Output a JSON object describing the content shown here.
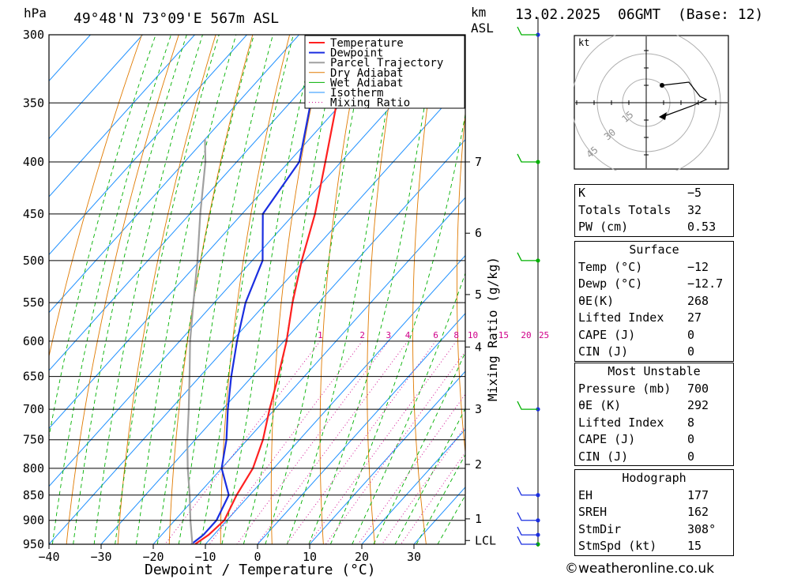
{
  "header": {
    "hpa": "hPa",
    "location": "49°48'N  73°09'E  567m  ASL",
    "km": "km",
    "asl": "ASL",
    "datetime": "13.02.2025  06GMT  (Base: 12)"
  },
  "legend": [
    "Temperature",
    "Dewpoint",
    "Parcel Trajectory",
    "Dry Adiabat",
    "Wet Adiabat",
    "Isotherm",
    "Mixing Ratio"
  ],
  "colors": {
    "temperature": "#ff2020",
    "dewpoint": "#1a2ee0",
    "parcel": "#a0a0a0",
    "dry_adiabat": "#e07a00",
    "wet_adiabat": "#00b000",
    "isotherm": "#1e90ff",
    "mixing_ratio": "#d0008a"
  },
  "chart_data": {
    "type": "line",
    "xlabel": "Dewpoint / Temperature (°C)",
    "ylabel": "hPa",
    "xlim": [
      -40,
      38
    ],
    "pressure_levels": [
      300,
      350,
      400,
      450,
      500,
      550,
      600,
      650,
      700,
      750,
      800,
      850,
      900,
      950
    ],
    "x_ticks": [
      -40,
      -30,
      -20,
      -10,
      0,
      10,
      20,
      30
    ],
    "series": [
      {
        "name": "Temperature",
        "pressure": [
          950,
          930,
          900,
          850,
          800,
          750,
          700,
          650,
          600,
          550,
          500,
          450,
          400,
          350,
          300
        ],
        "values": [
          -12,
          -11,
          -10.5,
          -12.5,
          -14,
          -17,
          -21,
          -25,
          -29.5,
          -35,
          -40.5,
          -46,
          -53,
          -61,
          -70
        ]
      },
      {
        "name": "Dewpoint",
        "pressure": [
          950,
          930,
          900,
          850,
          800,
          750,
          700,
          650,
          600,
          550,
          500,
          450,
          400,
          350,
          300
        ],
        "values": [
          -12.7,
          -12,
          -12,
          -14,
          -20,
          -24,
          -29,
          -34,
          -39,
          -44,
          -48,
          -56,
          -58,
          -66,
          -74
        ]
      },
      {
        "name": "Parcel Trajectory",
        "pressure": [
          950,
          900,
          850,
          800,
          750,
          700,
          650,
          600,
          550,
          500,
          450,
          400,
          380
        ],
        "values": [
          -12.5,
          -17,
          -21.5,
          -26.5,
          -31.5,
          -36.5,
          -42,
          -48,
          -54,
          -60.5,
          -68,
          -76,
          -80
        ]
      }
    ],
    "km_labels": [
      {
        "km": "7",
        "pressure": 400
      },
      {
        "km": "6",
        "pressure": 470
      },
      {
        "km": "5",
        "pressure": 540
      },
      {
        "km": "4",
        "pressure": 608
      },
      {
        "km": "3",
        "pressure": 700
      },
      {
        "km": "2",
        "pressure": 793
      },
      {
        "km": "1",
        "pressure": 897
      },
      {
        "km": "LCL",
        "pressure": 942
      }
    ],
    "mixing_ratio_lines": [
      "1",
      "2",
      "3",
      "4",
      "6",
      "8",
      "10",
      "15",
      "20",
      "25"
    ],
    "mixing_ratio_label": "Mixing Ratio (g/kg)",
    "wind_barb_pressures": [
      300,
      400,
      500,
      700,
      850,
      900,
      930,
      950
    ]
  },
  "hodograph": {
    "unit": "kt",
    "ring_labels": [
      "15",
      "30",
      "45"
    ]
  },
  "indices": {
    "rows": [
      {
        "label": "K",
        "value": "-5"
      },
      {
        "label": "Totals Totals",
        "value": "32"
      },
      {
        "label": "PW (cm)",
        "value": "0.53"
      }
    ],
    "surface_title": "Surface",
    "surface": [
      {
        "label": "Temp (°C)",
        "value": "-12"
      },
      {
        "label": "Dewp (°C)",
        "value": "-12.7"
      },
      {
        "label": "θE(K)",
        "value": "268"
      },
      {
        "label": "Lifted Index",
        "value": "27"
      },
      {
        "label": "CAPE (J)",
        "value": "0"
      },
      {
        "label": "CIN (J)",
        "value": "0"
      }
    ],
    "mu_title": "Most Unstable",
    "mu": [
      {
        "label": "Pressure (mb)",
        "value": "700"
      },
      {
        "label": "θE (K)",
        "value": "292"
      },
      {
        "label": "Lifted Index",
        "value": "8"
      },
      {
        "label": "CAPE (J)",
        "value": "0"
      },
      {
        "label": "CIN (J)",
        "value": "0"
      }
    ],
    "hodo_title": "Hodograph",
    "hodo": [
      {
        "label": "EH",
        "value": "177"
      },
      {
        "label": "SREH",
        "value": "162"
      },
      {
        "label": "StmDir",
        "value": "308°"
      },
      {
        "label": "StmSpd (kt)",
        "value": "15"
      }
    ]
  },
  "footer": "©weatheronline.co.uk"
}
